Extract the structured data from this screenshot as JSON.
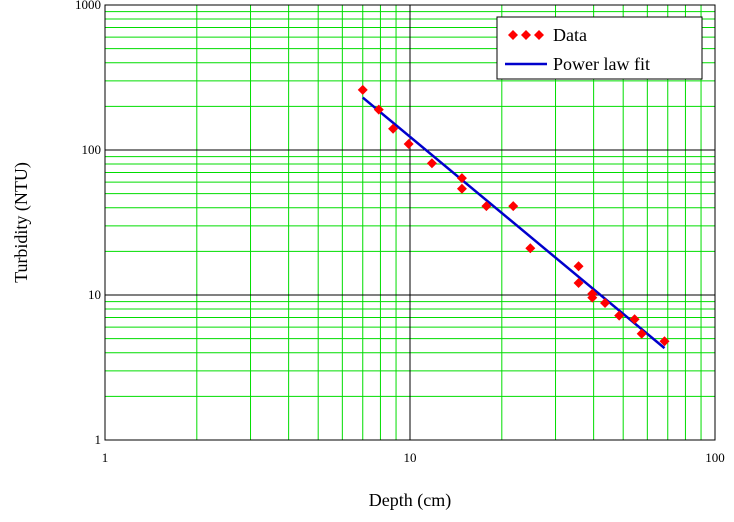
{
  "chart_data": {
    "type": "scatter",
    "xlabel": "Depth (cm)",
    "ylabel": "Turbidity (NTU)",
    "x_scale": "log",
    "y_scale": "log",
    "xlim": [
      1,
      100
    ],
    "ylim": [
      1,
      1000
    ],
    "x_ticks": [
      {
        "value": 1,
        "label": "1"
      },
      {
        "value": 10,
        "label": "10"
      },
      {
        "value": 100,
        "label": "100"
      }
    ],
    "y_ticks": [
      {
        "value": 1,
        "label": "1"
      },
      {
        "value": 10,
        "label": "10"
      },
      {
        "value": 100,
        "label": "100"
      },
      {
        "value": 1000,
        "label": "1000"
      }
    ],
    "grid": true,
    "legend_position": "top-right",
    "colors": {
      "data": "#ff0000",
      "fit": "#0000cc",
      "minor_grid": "#00dd00",
      "major_grid": "#000000"
    },
    "series": [
      {
        "name": "Data",
        "kind": "markers",
        "points": [
          {
            "x": 7.0,
            "y": 260
          },
          {
            "x": 7.9,
            "y": 190
          },
          {
            "x": 8.8,
            "y": 140
          },
          {
            "x": 9.9,
            "y": 110
          },
          {
            "x": 11.8,
            "y": 81
          },
          {
            "x": 14.8,
            "y": 64
          },
          {
            "x": 14.8,
            "y": 54
          },
          {
            "x": 17.8,
            "y": 41
          },
          {
            "x": 21.8,
            "y": 41
          },
          {
            "x": 24.8,
            "y": 21
          },
          {
            "x": 35.7,
            "y": 15.8
          },
          {
            "x": 35.7,
            "y": 12.1
          },
          {
            "x": 39.6,
            "y": 10.2
          },
          {
            "x": 39.6,
            "y": 9.6
          },
          {
            "x": 43.6,
            "y": 8.8
          },
          {
            "x": 48.5,
            "y": 7.2
          },
          {
            "x": 54.5,
            "y": 6.8
          },
          {
            "x": 57.5,
            "y": 5.4
          },
          {
            "x": 68.3,
            "y": 4.8
          }
        ]
      },
      {
        "name": "Power law fit",
        "kind": "line",
        "points": [
          {
            "x": 7.0,
            "y": 230
          },
          {
            "x": 68.3,
            "y": 4.3
          }
        ]
      }
    ]
  }
}
